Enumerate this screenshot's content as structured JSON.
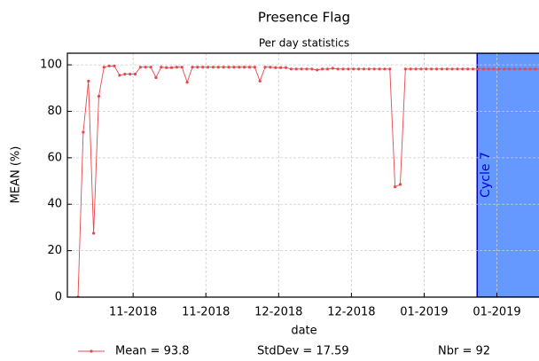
{
  "chart_data": {
    "type": "line",
    "title": "Presence Flag",
    "subtitle": "Per day statistics",
    "x_label": "date",
    "y_label": "MEAN (%)",
    "xlim": [
      -2.05,
      88.7
    ],
    "ylim": [
      0,
      105
    ],
    "xticks": [
      {
        "value": 10.6,
        "label": "11-2018"
      },
      {
        "value": 24.6,
        "label": "11-2018"
      },
      {
        "value": 38.6,
        "label": "12-2018"
      },
      {
        "value": 52.6,
        "label": "12-2018"
      },
      {
        "value": 66.6,
        "label": "01-2019"
      },
      {
        "value": 80.6,
        "label": "01-2019"
      }
    ],
    "yticks": [
      0,
      20,
      40,
      60,
      80,
      100
    ],
    "grid": true,
    "series": [
      {
        "name": "Mean = 93.8",
        "color": "#e8474c",
        "values": [
          0,
          71,
          93,
          27.5,
          86.5,
          99,
          99.5,
          99.5,
          95.5,
          96,
          96,
          96,
          99,
          99,
          99,
          94.5,
          99,
          98.8,
          98.8,
          99,
          99,
          92.5,
          99,
          99,
          99,
          99,
          99,
          99,
          99,
          99,
          99,
          99,
          99,
          99,
          99,
          93,
          99,
          99,
          98.8,
          98.8,
          98.8,
          98.2,
          98.2,
          98.2,
          98.2,
          98.2,
          97.8,
          98.2,
          98.2,
          98.5,
          98.2,
          98.2,
          98.2,
          98.2,
          98.2,
          98.2,
          98.2,
          98.2,
          98.2,
          98.2,
          98.2,
          47.5,
          48.5,
          98.2,
          98.2,
          98.2,
          98.2,
          98.2,
          98.2,
          98.2,
          98.2,
          98.2,
          98.2,
          98.2,
          98.2,
          98.2,
          98.2,
          98.2,
          98.2,
          98.2,
          98.2,
          98.2,
          98.2,
          98.2,
          98.2,
          98.2,
          98.2,
          98.2,
          98.2,
          98.2,
          98.2,
          98.2
        ]
      }
    ],
    "stats": [
      "StdDev = 17.59",
      "Nbr = 92"
    ],
    "spans": [
      {
        "start": 76.8,
        "label": "Cycle 7",
        "color": "#6699ff"
      }
    ]
  }
}
